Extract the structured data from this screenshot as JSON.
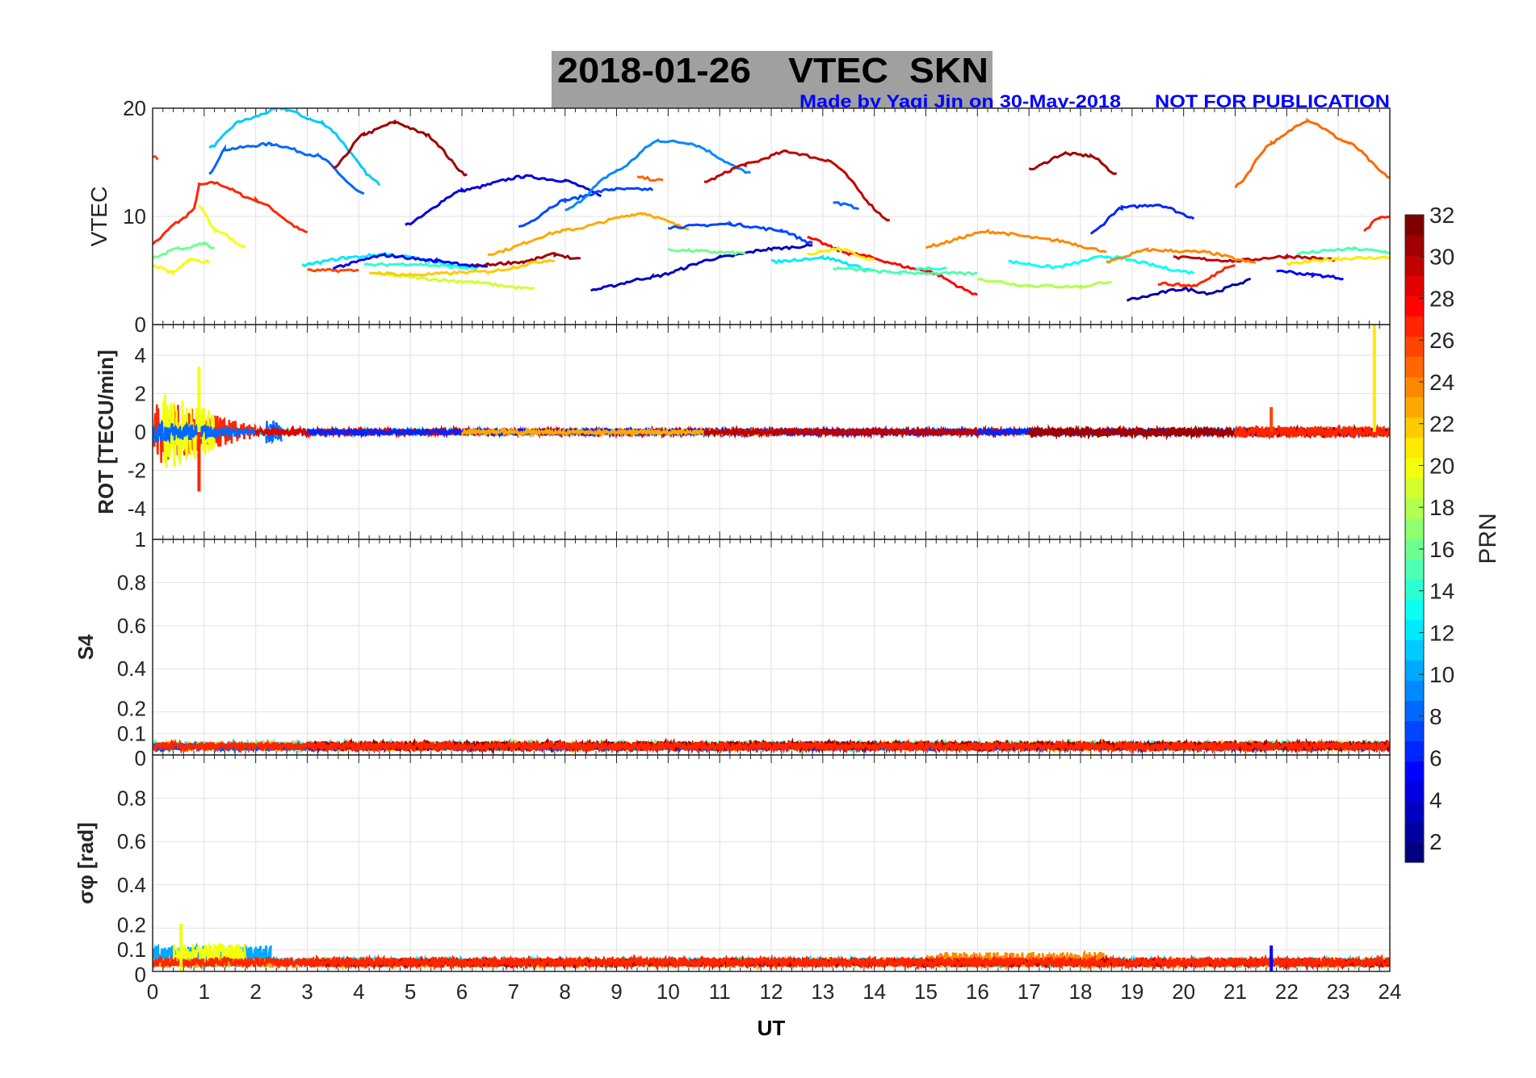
{
  "title": {
    "date": "2018-01-26",
    "main": "VTEC  SKN",
    "credit": "Made by Yaqi Jin on 30-May-2018",
    "notice": "NOT FOR PUBLICATION"
  },
  "colors": {
    "title_box": "#a0a0a0",
    "credit_text": "#0000ff",
    "grid": "#dcdcdc"
  },
  "chart_data": [
    {
      "type": "line",
      "name": "vtec",
      "ylabel": "VTEC",
      "xlim": [
        0,
        24
      ],
      "ylim": [
        0,
        20
      ],
      "yticks": [
        0,
        10,
        20
      ],
      "series_note": "arcs by PRN, points are [UT hour, VTEC]",
      "series": [
        {
          "prn": 26,
          "points": [
            [
              0,
              15.6
            ],
            [
              0.1,
              15.3
            ]
          ]
        },
        {
          "prn": 27,
          "points": [
            [
              0,
              7.5
            ],
            [
              0.5,
              9.5
            ],
            [
              0.8,
              10.6
            ],
            [
              0.9,
              12.9
            ],
            [
              1.2,
              13.1
            ],
            [
              2,
              11.5
            ],
            [
              3,
              8.5
            ]
          ]
        },
        {
          "prn": 20,
          "points": [
            [
              0.9,
              11
            ],
            [
              1.2,
              8.8
            ],
            [
              1.8,
              7.2
            ]
          ]
        },
        {
          "prn": 16,
          "points": [
            [
              0,
              6.2
            ],
            [
              0.5,
              7
            ],
            [
              1,
              7.5
            ],
            [
              1.2,
              7
            ]
          ]
        },
        {
          "prn": 20,
          "points": [
            [
              0,
              5.5
            ],
            [
              0.4,
              4.8
            ],
            [
              0.7,
              6
            ],
            [
              1.1,
              5.8
            ]
          ]
        },
        {
          "prn": 11,
          "points": [
            [
              1.1,
              16.3
            ],
            [
              1.7,
              18.8
            ],
            [
              2.5,
              20
            ],
            [
              3.3,
              18.6
            ],
            [
              4.4,
              13
            ]
          ]
        },
        {
          "prn": 8,
          "points": [
            [
              1.1,
              14
            ],
            [
              1.4,
              16.2
            ],
            [
              2.3,
              16.7
            ],
            [
              3.2,
              15.6
            ],
            [
              4.1,
              12
            ]
          ]
        },
        {
          "prn": 31,
          "points": [
            [
              3.5,
              14.4
            ],
            [
              4.1,
              17.6
            ],
            [
              4.7,
              18.7
            ],
            [
              5.3,
              17.6
            ],
            [
              6.1,
              13.8
            ]
          ]
        },
        {
          "prn": 4,
          "points": [
            [
              4.9,
              9.2
            ],
            [
              6,
              12.4
            ],
            [
              7.2,
              13.7
            ],
            [
              8,
              13.3
            ],
            [
              8.7,
              12
            ]
          ]
        },
        {
          "prn": 7,
          "points": [
            [
              7.1,
              9
            ],
            [
              8,
              11.5
            ],
            [
              8.9,
              12.5
            ],
            [
              9.7,
              12.5
            ]
          ]
        },
        {
          "prn": 9,
          "points": [
            [
              8,
              10.5
            ],
            [
              9,
              14.2
            ],
            [
              9.8,
              17
            ],
            [
              10.4,
              16.8
            ],
            [
              11.6,
              14
            ]
          ]
        },
        {
          "prn": 25,
          "points": [
            [
              9.4,
              13.6
            ],
            [
              9.9,
              13.3
            ]
          ]
        },
        {
          "prn": 30,
          "points": [
            [
              10.7,
              13.2
            ],
            [
              11.5,
              14.8
            ],
            [
              12.3,
              16
            ],
            [
              13.1,
              15.2
            ],
            [
              14.3,
              9.6
            ]
          ]
        },
        {
          "prn": 8,
          "points": [
            [
              13.2,
              11.3
            ],
            [
              13.7,
              10.8
            ]
          ]
        },
        {
          "prn": 31,
          "points": [
            [
              17,
              14.3
            ],
            [
              17.7,
              15.8
            ],
            [
              18.2,
              15.6
            ],
            [
              18.7,
              13.9
            ]
          ]
        },
        {
          "prn": 25,
          "points": [
            [
              21,
              12.7
            ],
            [
              21.7,
              16.8
            ],
            [
              22.4,
              18.9
            ],
            [
              23.2,
              16.8
            ],
            [
              24,
              13.6
            ]
          ]
        },
        {
          "prn": 6,
          "points": [
            [
              18.2,
              8.4
            ],
            [
              18.8,
              10.8
            ],
            [
              19.5,
              11.1
            ],
            [
              20.2,
              9.9
            ]
          ]
        },
        {
          "prn": 27,
          "points": [
            [
              23.5,
              8.7
            ],
            [
              23.8,
              9.9
            ],
            [
              24,
              10
            ]
          ]
        },
        {
          "prn": 23,
          "points": [
            [
              6.5,
              6.5
            ],
            [
              8,
              8.7
            ],
            [
              9.5,
              10.3
            ],
            [
              10.4,
              8.9
            ]
          ]
        },
        {
          "prn": 7,
          "points": [
            [
              10,
              9
            ],
            [
              11.2,
              9.3
            ],
            [
              12.2,
              8.7
            ],
            [
              12.8,
              7.5
            ]
          ]
        },
        {
          "prn": 3,
          "points": [
            [
              8.5,
              3.2
            ],
            [
              9.7,
              4.4
            ],
            [
              11,
              6.2
            ],
            [
              12,
              7
            ],
            [
              12.8,
              7.3
            ]
          ]
        },
        {
          "prn": 24,
          "points": [
            [
              15,
              7.2
            ],
            [
              16.2,
              8.6
            ],
            [
              17.5,
              7.8
            ],
            [
              18.5,
              6.8
            ]
          ]
        },
        {
          "prn": 28,
          "points": [
            [
              12.7,
              8
            ],
            [
              13.5,
              6.6
            ],
            [
              15,
              5
            ],
            [
              16,
              2.8
            ]
          ]
        },
        {
          "prn": 16,
          "points": [
            [
              10,
              6.9
            ],
            [
              11.5,
              6.6
            ]
          ]
        },
        {
          "prn": 19,
          "points": [
            [
              4.4,
              4.6
            ],
            [
              6,
              4
            ],
            [
              7.4,
              3.3
            ]
          ]
        },
        {
          "prn": 2,
          "points": [
            [
              18.9,
              2.3
            ],
            [
              20,
              3.3
            ],
            [
              20.5,
              2.9
            ],
            [
              21.3,
              4.1
            ]
          ]
        },
        {
          "prn": 5,
          "points": [
            [
              21.8,
              5
            ],
            [
              22.5,
              4.6
            ],
            [
              23.1,
              4.3
            ]
          ]
        },
        {
          "prn": 13,
          "points": [
            [
              16.6,
              5.8
            ],
            [
              17.5,
              5.3
            ],
            [
              18.5,
              6.3
            ],
            [
              20.2,
              4.8
            ]
          ]
        },
        {
          "prn": 18,
          "points": [
            [
              16,
              4.2
            ],
            [
              17,
              3.6
            ],
            [
              18,
              3.5
            ],
            [
              18.6,
              4
            ]
          ]
        },
        {
          "prn": 30,
          "points": [
            [
              19.8,
              6.2
            ],
            [
              21,
              5.9
            ],
            [
              22,
              6.3
            ],
            [
              23,
              6
            ]
          ]
        },
        {
          "prn": 21,
          "points": [
            [
              22,
              5.6
            ],
            [
              23,
              6.1
            ],
            [
              24,
              6.2
            ]
          ]
        },
        {
          "prn": 15,
          "points": [
            [
              22.2,
              6.6
            ],
            [
              23.3,
              7
            ],
            [
              24,
              6.7
            ]
          ]
        },
        {
          "prn": 24,
          "points": [
            [
              18.5,
              5.8
            ],
            [
              19.3,
              6.9
            ],
            [
              20.4,
              6.7
            ],
            [
              21.4,
              5.7
            ]
          ]
        },
        {
          "prn": 31,
          "points": [
            [
              6.1,
              5.4
            ],
            [
              7.2,
              5.8
            ],
            [
              7.8,
              6.5
            ],
            [
              8.3,
              6
            ]
          ]
        },
        {
          "prn": 12,
          "points": [
            [
              2.9,
              5.5
            ],
            [
              3.8,
              6.2
            ],
            [
              4.5,
              6.5
            ],
            [
              6.1,
              5.4
            ]
          ]
        },
        {
          "prn": 14,
          "points": [
            [
              4.1,
              5.5
            ],
            [
              5,
              5.6
            ],
            [
              6.3,
              5.2
            ]
          ]
        },
        {
          "prn": 26,
          "points": [
            [
              3,
              5
            ],
            [
              4,
              5
            ]
          ]
        },
        {
          "prn": 5,
          "points": [
            [
              3.5,
              5.3
            ],
            [
              4.5,
              6.4
            ],
            [
              5.5,
              5.9
            ],
            [
              6.5,
              5.3
            ]
          ]
        },
        {
          "prn": 22,
          "points": [
            [
              4.2,
              4.8
            ],
            [
              5,
              4.6
            ],
            [
              6.5,
              4.9
            ],
            [
              7.8,
              6
            ]
          ]
        },
        {
          "prn": 21,
          "points": [
            [
              12.7,
              6.5
            ],
            [
              13.3,
              7
            ],
            [
              14,
              6
            ]
          ]
        },
        {
          "prn": 12,
          "points": [
            [
              12,
              5.8
            ],
            [
              13,
              6.2
            ],
            [
              14,
              5
            ]
          ]
        },
        {
          "prn": 15,
          "points": [
            [
              13.2,
              5.2
            ],
            [
              14.5,
              4.8
            ],
            [
              16,
              4.7
            ]
          ]
        },
        {
          "prn": 14,
          "points": [
            [
              14.8,
              5.2
            ],
            [
              15.4,
              5.2
            ]
          ]
        },
        {
          "prn": 27,
          "points": [
            [
              19.5,
              3.8
            ],
            [
              20.2,
              3.6
            ],
            [
              21,
              5.6
            ]
          ]
        }
      ]
    },
    {
      "type": "line",
      "name": "rot",
      "ylabel": "ROT [TECU/min]",
      "xlim": [
        0,
        24
      ],
      "ylim": [
        -5.6,
        5.6
      ],
      "yticks": [
        -4,
        -2,
        0,
        2,
        4
      ],
      "noise_segments": [
        [
          0,
          2,
          27,
          1.8
        ],
        [
          0.2,
          1.2,
          20,
          2.2
        ],
        [
          0,
          2.5,
          8,
          0.6
        ],
        [
          2,
          24,
          13,
          0.15
        ],
        [
          2,
          24,
          29,
          0.2
        ],
        [
          3,
          24,
          6,
          0.15
        ],
        [
          6,
          12,
          23,
          0.12
        ],
        [
          10.7,
          16,
          30,
          0.15
        ],
        [
          17,
          24,
          31,
          0.25
        ],
        [
          21,
          24,
          27,
          0.3
        ]
      ],
      "spikes": [
        [
          0.9,
          -3.1,
          27
        ],
        [
          0.9,
          3.4,
          20
        ],
        [
          23.7,
          5.6,
          21
        ],
        [
          21.7,
          1.3,
          26
        ]
      ]
    },
    {
      "type": "line",
      "name": "s4",
      "ylabel": "S4",
      "xlim": [
        0,
        24
      ],
      "ylim": [
        0,
        1
      ],
      "yticks": [
        0,
        0.1,
        0.2,
        0.4,
        0.6,
        0.8,
        1
      ],
      "noise_segments": [
        [
          0,
          24,
          15,
          0.045
        ],
        [
          0,
          24,
          22,
          0.04
        ],
        [
          0,
          24,
          7,
          0.035
        ],
        [
          3,
          24,
          31,
          0.045
        ],
        [
          0,
          24,
          27,
          0.04
        ]
      ]
    },
    {
      "type": "line",
      "name": "sigma_phi",
      "ylabel": "σφ [rad]",
      "xlim": [
        0,
        24
      ],
      "ylim": [
        0,
        1
      ],
      "yticks": [
        0,
        0.1,
        0.2,
        0.4,
        0.6,
        0.8
      ],
      "noise_segments": [
        [
          0,
          24,
          12,
          0.045
        ],
        [
          0,
          2.3,
          10,
          0.1
        ],
        [
          0.4,
          1.8,
          20,
          0.11
        ],
        [
          0,
          24,
          23,
          0.04
        ],
        [
          15,
          18.5,
          24,
          0.07
        ],
        [
          3,
          24,
          30,
          0.04
        ],
        [
          0,
          24,
          27,
          0.045
        ]
      ],
      "spikes": [
        [
          0.55,
          0.22,
          20
        ],
        [
          21.7,
          0.12,
          5
        ]
      ]
    },
    {
      "type": "colorbar",
      "label": "PRN",
      "range": [
        1,
        32
      ],
      "ticks": [
        2,
        4,
        6,
        8,
        10,
        12,
        14,
        16,
        18,
        20,
        22,
        24,
        26,
        28,
        30,
        32
      ]
    }
  ],
  "xaxis": {
    "label": "UT",
    "ticks": [
      0,
      1,
      2,
      3,
      4,
      5,
      6,
      7,
      8,
      9,
      10,
      11,
      12,
      13,
      14,
      15,
      16,
      17,
      18,
      19,
      20,
      21,
      22,
      23,
      24
    ]
  }
}
